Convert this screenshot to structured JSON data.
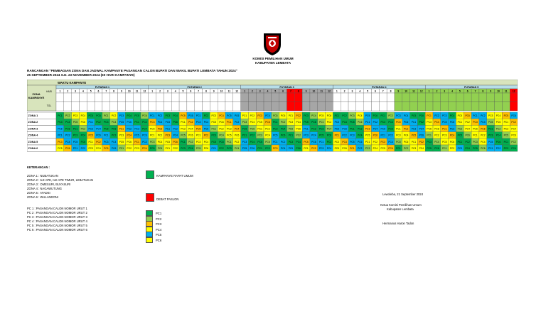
{
  "header": {
    "org_name": "KOMISI PEMILIHAN UMUM",
    "regency": "KABUPATEN LEMBATA",
    "title": "RANCANGAN \"PEMBAGIAN ZONA DAN JADWAL KAMPANYE PASANGAN CALON BUPATI DAN WAKIL BUPATI LEMBATA TAHUN 2024\"",
    "period": "25 SEPTEMBER 2024  S.D. 23 NOVEMBER 2024 (60 HARI KAMPANYE)"
  },
  "table": {
    "section_label": "WAKTU KAMPANYE",
    "zone_header": "ZONA KAMPANYE",
    "row_hari": "HARI",
    "row_tgl": "TGL",
    "rounds": [
      {
        "label": "PUTARAN 1",
        "days": 12
      },
      {
        "label": "PUTARAN 2",
        "days": 12
      },
      {
        "label": "PUTARAN 3",
        "days": 12
      },
      {
        "label": "PUTARAN 4",
        "days": 12
      },
      {
        "label": "PUTARAN 5",
        "days": 12
      }
    ],
    "zones": [
      "ZONA 1",
      "ZONA 2",
      "ZONA 3",
      "ZONA 4",
      "ZONA 5",
      "ZONA 6"
    ],
    "codes": [
      "PC1",
      "PC2",
      "PC3",
      "PC4",
      "PC5",
      "PC6"
    ]
  },
  "colors": {
    "header_bg": "#d8e4bc",
    "round_bg": "#b7dee8",
    "green": "#00b050",
    "red": "#ff0000",
    "yellow": "#ffff00",
    "blue": "#00b0f0",
    "lime": "#92d050",
    "orange": "#ffc000",
    "gray": "#a6a6a6"
  },
  "legend": {
    "title": "KETERANGAN :",
    "zones": [
      "ZONA 1 : NUBATUKAN",
      "ZONA 2 : ILE APE, ILE APE TIMUR, LEBATUKAN",
      "ZONA 3 : OMESURI, BUYASURI",
      "ZONA 4 : NAGAWUTUNG",
      "ZONA 5 : ATADEI",
      "ZONA 6 : WULANDONI"
    ],
    "candidates": [
      "PC 1 : PASANGAN CALON NOMOR URUT 1",
      "PC 2 : PASANGAN CALON NOMOR URUT 2",
      "PC 3 : PASANGAN CALON NOMOR URUT 3",
      "PC 4 : PASANGAN CALON NOMOR URUT 4",
      "PC 5 : PASANGAN CALON NOMOR URUT 5",
      "PC 6 : PASANGAN CALON NOMOR URUT 6"
    ],
    "rapat_umum": "KAMPANYE RAPAT UMUM",
    "debat": "DEBAT PASLON",
    "pc_labels": [
      "PC1",
      "PC2",
      "PC3",
      "PC4",
      "PC5",
      "PC6"
    ]
  },
  "signature": {
    "place_date": "Lewoleba, 21 September 2024",
    "office_line1": "Ketua Komisi Pemilihan Umum",
    "office_line2": "Kabupaten Lembata",
    "name": "Hermanus Haron Tadon"
  }
}
